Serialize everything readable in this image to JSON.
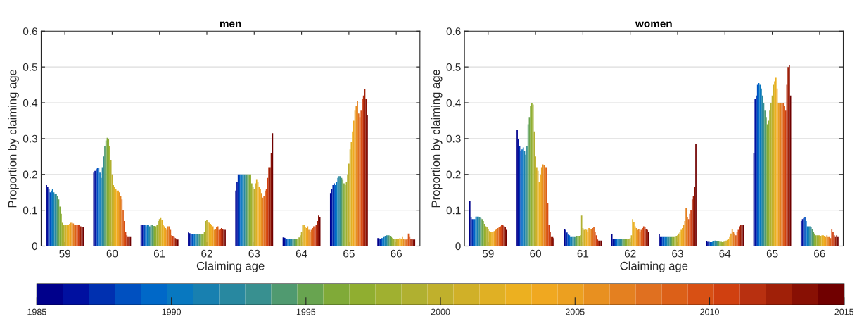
{
  "chart_data": [
    {
      "type": "bar",
      "title": "men",
      "xlabel": "Claiming age",
      "ylabel": "Proportion by claiming age",
      "categories": [
        "59",
        "60",
        "61",
        "62",
        "63",
        "64",
        "65",
        "66"
      ],
      "ylim": [
        0,
        0.6
      ],
      "yticks": [
        0,
        0.1,
        0.2,
        0.3,
        0.4,
        0.5,
        0.6
      ],
      "grid": "y",
      "series": [
        {
          "color": "#00008b",
          "values": [
            0.17,
            0.205,
            0.06,
            0.038,
            0.155,
            0.024,
            0.148,
            0.022
          ]
        },
        {
          "color": "#0010a0",
          "values": [
            0.165,
            0.21,
            0.06,
            0.036,
            0.18,
            0.023,
            0.16,
            0.021
          ]
        },
        {
          "color": "#0030b0",
          "values": [
            0.16,
            0.215,
            0.058,
            0.034,
            0.2,
            0.022,
            0.17,
            0.02
          ]
        },
        {
          "color": "#0050c0",
          "values": [
            0.15,
            0.218,
            0.058,
            0.034,
            0.2,
            0.02,
            0.175,
            0.022
          ]
        },
        {
          "color": "#0068c8",
          "values": [
            0.155,
            0.218,
            0.055,
            0.034,
            0.2,
            0.02,
            0.17,
            0.022
          ]
        },
        {
          "color": "#0878c0",
          "values": [
            0.158,
            0.205,
            0.058,
            0.034,
            0.2,
            0.019,
            0.18,
            0.025
          ]
        },
        {
          "color": "#1880b0",
          "values": [
            0.15,
            0.19,
            0.058,
            0.034,
            0.2,
            0.019,
            0.19,
            0.028
          ]
        },
        {
          "color": "#2888a0",
          "values": [
            0.145,
            0.22,
            0.055,
            0.034,
            0.2,
            0.019,
            0.195,
            0.03
          ]
        },
        {
          "color": "#389090",
          "values": [
            0.145,
            0.25,
            0.058,
            0.034,
            0.2,
            0.02,
            0.195,
            0.03
          ]
        },
        {
          "color": "#509a70",
          "values": [
            0.14,
            0.28,
            0.058,
            0.034,
            0.2,
            0.02,
            0.19,
            0.03
          ]
        },
        {
          "color": "#68a450",
          "values": [
            0.13,
            0.295,
            0.056,
            0.034,
            0.2,
            0.02,
            0.185,
            0.028
          ]
        },
        {
          "color": "#80aa38",
          "values": [
            0.11,
            0.302,
            0.056,
            0.034,
            0.2,
            0.019,
            0.175,
            0.025
          ]
        },
        {
          "color": "#90ae30",
          "values": [
            0.09,
            0.298,
            0.055,
            0.034,
            0.2,
            0.02,
            0.17,
            0.022
          ]
        },
        {
          "color": "#a0b030",
          "values": [
            0.065,
            0.28,
            0.06,
            0.04,
            0.175,
            0.024,
            0.18,
            0.02
          ]
        },
        {
          "color": "#b0b030",
          "values": [
            0.06,
            0.24,
            0.07,
            0.07,
            0.165,
            0.03,
            0.2,
            0.02
          ]
        },
        {
          "color": "#c0b02c",
          "values": [
            0.058,
            0.2,
            0.075,
            0.072,
            0.16,
            0.04,
            0.23,
            0.02
          ]
        },
        {
          "color": "#d0b028",
          "values": [
            0.058,
            0.17,
            0.078,
            0.068,
            0.175,
            0.06,
            0.27,
            0.02
          ]
        },
        {
          "color": "#e0b024",
          "values": [
            0.06,
            0.165,
            0.072,
            0.065,
            0.185,
            0.058,
            0.29,
            0.02
          ]
        },
        {
          "color": "#ecb020",
          "values": [
            0.06,
            0.16,
            0.06,
            0.062,
            0.178,
            0.052,
            0.32,
            0.022
          ]
        },
        {
          "color": "#f0a820",
          "values": [
            0.062,
            0.155,
            0.055,
            0.058,
            0.165,
            0.05,
            0.35,
            0.02
          ]
        },
        {
          "color": "#eca020",
          "values": [
            0.065,
            0.155,
            0.05,
            0.055,
            0.16,
            0.055,
            0.38,
            0.025
          ]
        },
        {
          "color": "#e89020",
          "values": [
            0.065,
            0.15,
            0.045,
            0.045,
            0.148,
            0.045,
            0.39,
            0.02
          ]
        },
        {
          "color": "#e48020",
          "values": [
            0.063,
            0.14,
            0.055,
            0.048,
            0.135,
            0.04,
            0.405,
            0.018
          ]
        },
        {
          "color": "#e07020",
          "values": [
            0.06,
            0.13,
            0.055,
            0.052,
            0.14,
            0.045,
            0.37,
            0.018
          ]
        },
        {
          "color": "#dc6018",
          "values": [
            0.06,
            0.1,
            0.045,
            0.055,
            0.155,
            0.05,
            0.36,
            0.02
          ]
        },
        {
          "color": "#d85014",
          "values": [
            0.058,
            0.07,
            0.03,
            0.045,
            0.16,
            0.055,
            0.38,
            0.035
          ]
        },
        {
          "color": "#d04010",
          "values": [
            0.06,
            0.04,
            0.028,
            0.048,
            0.19,
            0.055,
            0.41,
            0.025
          ]
        },
        {
          "color": "#b83010",
          "values": [
            0.058,
            0.03,
            0.025,
            0.05,
            0.22,
            0.06,
            0.42,
            0.02
          ]
        },
        {
          "color": "#a02008",
          "values": [
            0.055,
            0.025,
            0.022,
            0.048,
            0.22,
            0.07,
            0.438,
            0.02
          ]
        },
        {
          "color": "#881004",
          "values": [
            0.052,
            0.025,
            0.02,
            0.045,
            0.26,
            0.085,
            0.41,
            0.018
          ]
        },
        {
          "color": "#700000",
          "values": [
            0.052,
            0.025,
            0.018,
            0.045,
            0.315,
            0.08,
            0.365,
            0.018
          ]
        }
      ]
    },
    {
      "type": "bar",
      "title": "women",
      "xlabel": "Claiming age",
      "ylabel": "Proportion by claiming age",
      "categories": [
        "59",
        "60",
        "61",
        "62",
        "63",
        "64",
        "65",
        "66"
      ],
      "ylim": [
        0,
        0.6
      ],
      "yticks": [
        0,
        0.1,
        0.2,
        0.3,
        0.4,
        0.5,
        0.6
      ],
      "grid": "y",
      "clim": [
        1985,
        2015
      ],
      "cticks": [
        1985,
        1990,
        1995,
        2000,
        2005,
        2010,
        2015
      ],
      "series": [
        {
          "color": "#00008b",
          "values": [
            0.125,
            0.325,
            0.048,
            0.033,
            0.033,
            0.014,
            0.26,
            0.07
          ]
        },
        {
          "color": "#0010a0",
          "values": [
            0.08,
            0.3,
            0.045,
            0.02,
            0.025,
            0.012,
            0.41,
            0.075
          ]
        },
        {
          "color": "#0030b0",
          "values": [
            0.075,
            0.28,
            0.038,
            0.02,
            0.025,
            0.012,
            0.42,
            0.078
          ]
        },
        {
          "color": "#0050c0",
          "values": [
            0.075,
            0.265,
            0.032,
            0.02,
            0.025,
            0.011,
            0.45,
            0.08
          ]
        },
        {
          "color": "#0068c8",
          "values": [
            0.075,
            0.27,
            0.03,
            0.02,
            0.025,
            0.011,
            0.455,
            0.07
          ]
        },
        {
          "color": "#0878c0",
          "values": [
            0.082,
            0.275,
            0.025,
            0.02,
            0.025,
            0.012,
            0.45,
            0.055
          ]
        },
        {
          "color": "#1880b0",
          "values": [
            0.082,
            0.265,
            0.025,
            0.02,
            0.025,
            0.013,
            0.44,
            0.055
          ]
        },
        {
          "color": "#2888a0",
          "values": [
            0.082,
            0.255,
            0.025,
            0.02,
            0.025,
            0.015,
            0.42,
            0.055
          ]
        },
        {
          "color": "#389090",
          "values": [
            0.08,
            0.28,
            0.025,
            0.02,
            0.025,
            0.014,
            0.4,
            0.052
          ]
        },
        {
          "color": "#509a70",
          "values": [
            0.078,
            0.34,
            0.025,
            0.02,
            0.025,
            0.013,
            0.38,
            0.048
          ]
        },
        {
          "color": "#68a450",
          "values": [
            0.075,
            0.36,
            0.028,
            0.02,
            0.025,
            0.013,
            0.36,
            0.04
          ]
        },
        {
          "color": "#80aa38",
          "values": [
            0.07,
            0.39,
            0.028,
            0.02,
            0.025,
            0.012,
            0.34,
            0.035
          ]
        },
        {
          "color": "#90ae30",
          "values": [
            0.062,
            0.4,
            0.028,
            0.02,
            0.025,
            0.012,
            0.35,
            0.03
          ]
        },
        {
          "color": "#a0b030",
          "values": [
            0.055,
            0.395,
            0.03,
            0.02,
            0.025,
            0.011,
            0.38,
            0.03
          ]
        },
        {
          "color": "#b0b030",
          "values": [
            0.052,
            0.32,
            0.085,
            0.02,
            0.028,
            0.012,
            0.4,
            0.03
          ]
        },
        {
          "color": "#c0b02c",
          "values": [
            0.048,
            0.25,
            0.05,
            0.022,
            0.03,
            0.013,
            0.42,
            0.03
          ]
        },
        {
          "color": "#d0b028",
          "values": [
            0.042,
            0.22,
            0.045,
            0.03,
            0.035,
            0.015,
            0.45,
            0.028
          ]
        },
        {
          "color": "#e0b024",
          "values": [
            0.04,
            0.21,
            0.048,
            0.075,
            0.04,
            0.017,
            0.46,
            0.03
          ]
        },
        {
          "color": "#ecb020",
          "values": [
            0.04,
            0.18,
            0.045,
            0.068,
            0.045,
            0.02,
            0.47,
            0.03
          ]
        },
        {
          "color": "#f0a820",
          "values": [
            0.04,
            0.2,
            0.04,
            0.055,
            0.05,
            0.025,
            0.44,
            0.028
          ]
        },
        {
          "color": "#eca020",
          "values": [
            0.042,
            0.22,
            0.05,
            0.05,
            0.06,
            0.035,
            0.4,
            0.025
          ]
        },
        {
          "color": "#e89020",
          "values": [
            0.045,
            0.228,
            0.048,
            0.045,
            0.07,
            0.048,
            0.4,
            0.03
          ]
        },
        {
          "color": "#e48020",
          "values": [
            0.048,
            0.225,
            0.048,
            0.048,
            0.105,
            0.04,
            0.4,
            0.025
          ]
        },
        {
          "color": "#e07020",
          "values": [
            0.05,
            0.22,
            0.05,
            0.04,
            0.08,
            0.035,
            0.4,
            0.025
          ]
        },
        {
          "color": "#dc6018",
          "values": [
            0.052,
            0.22,
            0.052,
            0.045,
            0.075,
            0.03,
            0.4,
            0.022
          ]
        },
        {
          "color": "#d85014",
          "values": [
            0.055,
            0.12,
            0.04,
            0.05,
            0.09,
            0.04,
            0.39,
            0.048
          ]
        },
        {
          "color": "#d04010",
          "values": [
            0.058,
            0.06,
            0.03,
            0.055,
            0.1,
            0.045,
            0.38,
            0.04
          ]
        },
        {
          "color": "#b83010",
          "values": [
            0.058,
            0.04,
            0.018,
            0.052,
            0.13,
            0.055,
            0.45,
            0.03
          ]
        },
        {
          "color": "#a02008",
          "values": [
            0.056,
            0.025,
            0.015,
            0.048,
            0.14,
            0.06,
            0.5,
            0.025
          ]
        },
        {
          "color": "#881004",
          "values": [
            0.052,
            0.025,
            0.015,
            0.045,
            0.165,
            0.058,
            0.505,
            0.03
          ]
        },
        {
          "color": "#700000",
          "values": [
            0.045,
            0.022,
            0.015,
            0.04,
            0.285,
            0.058,
            0.42,
            0.025
          ]
        }
      ]
    }
  ]
}
